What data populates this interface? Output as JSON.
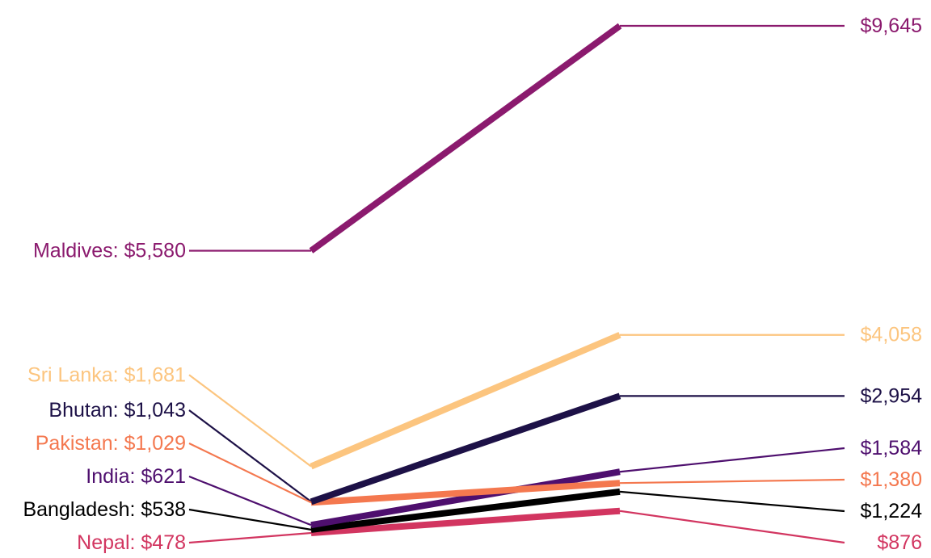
{
  "chart_data": {
    "type": "line",
    "title": "",
    "xlabel": "",
    "ylabel": "",
    "grid": false,
    "legend": "none",
    "series": [
      {
        "name": "Maldives",
        "start": 5580,
        "end": 9645,
        "start_label": "Maldives: $5,580",
        "end_label": "$9,645",
        "color": "#8b1a6e"
      },
      {
        "name": "Sri Lanka",
        "start": 1681,
        "end": 4058,
        "start_label": "Sri Lanka: $1,681",
        "end_label": "$4,058",
        "color": "#fcc57f"
      },
      {
        "name": "Bhutan",
        "start": 1043,
        "end": 2954,
        "start_label": "Bhutan: $1,043",
        "end_label": "$2,954",
        "color": "#1d1147"
      },
      {
        "name": "Pakistan",
        "start": 1029,
        "end": 1380,
        "start_label": "Pakistan: $1,029",
        "end_label": "$1,380",
        "color": "#f4784f"
      },
      {
        "name": "India",
        "start": 621,
        "end": 1584,
        "start_label": "India: $621",
        "end_label": "$1,584",
        "color": "#4e0f6e"
      },
      {
        "name": "Bangladesh",
        "start": 538,
        "end": 1224,
        "start_label": "Bangladesh: $538",
        "end_label": "$1,224",
        "color": "#000000"
      },
      {
        "name": "Nepal",
        "start": 478,
        "end": 876,
        "start_label": "Nepal: $478",
        "end_label": "$876",
        "color": "#d23560"
      }
    ]
  }
}
